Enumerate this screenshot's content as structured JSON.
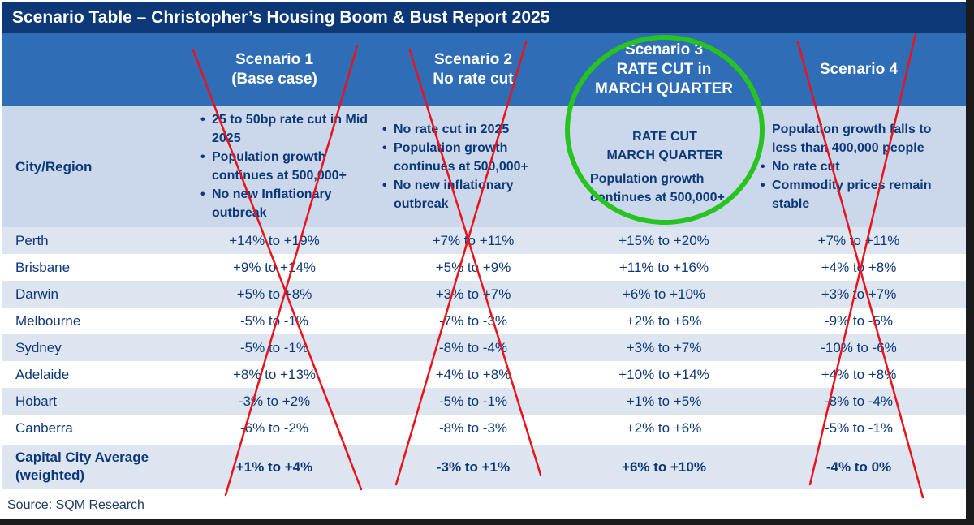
{
  "title": "Scenario Table – Christopher’s Housing  Boom & Bust Report 2025",
  "scenarios": [
    {
      "header": [
        "Scenario 1",
        "(Base case)"
      ],
      "bullets": [
        "25 to 50bp rate cut in Mid 2025",
        "Population growth continues at 500,000+",
        "No new Inflationary outbreak"
      ],
      "crossed_out": true
    },
    {
      "header": [
        "Scenario 2",
        "No rate cut"
      ],
      "bullets": [
        "No rate cut in 2025",
        "Population growth continues at 500,000+",
        "No new inflationary outbreak"
      ],
      "crossed_out": true
    },
    {
      "header": [
        "Scenario 3",
        "RATE CUT in",
        "MARCH QUARTER"
      ],
      "heading": [
        "RATE CUT",
        "MARCH QUARTER"
      ],
      "bullets": [
        "Population growth continues at 500,000+"
      ],
      "circled": true
    },
    {
      "header": [
        "Scenario 4"
      ],
      "bullets": [
        "Population growth falls to less than 400,000 people",
        "No rate cut",
        "Commodity prices remain stable"
      ],
      "crossed_out": true
    }
  ],
  "city_header": "City/Region",
  "rows": [
    {
      "city": "Perth",
      "values": [
        "+14% to +19%",
        "+7% to +11%",
        "+15% to +20%",
        "+7% to +11%"
      ]
    },
    {
      "city": "Brisbane",
      "values": [
        "+9% to +14%",
        "+5% to +9%",
        "+11% to +16%",
        "+4% to +8%"
      ]
    },
    {
      "city": "Darwin",
      "values": [
        "+5% to +8%",
        "+3% to +7%",
        "+6% to +10%",
        "+3% to +7%"
      ]
    },
    {
      "city": "Melbourne",
      "values": [
        "-5% to -1%",
        "-7% to -3%",
        "+2% to +6%",
        "-9% to -5%"
      ]
    },
    {
      "city": "Sydney",
      "values": [
        "-5% to  -1%",
        "-8% to -4%",
        "+3% to +7%",
        "-10% to -6%"
      ]
    },
    {
      "city": "Adelaide",
      "values": [
        "+8% to +13%",
        "+4% to +8%",
        "+10% to +14%",
        "+4% to +8%"
      ]
    },
    {
      "city": "Hobart",
      "values": [
        "-3% to +2%",
        "-5% to -1%",
        "+1% to +5%",
        "-8% to -4%"
      ]
    },
    {
      "city": "Canberra",
      "values": [
        "-6% to -2%",
        "-8% to -3%",
        "+2% to +6%",
        "-5% to -1%"
      ]
    }
  ],
  "average": {
    "label": [
      "Capital City Average",
      "(weighted)"
    ],
    "values": [
      "+1% to +4%",
      "-3% to +1%",
      "+6% to +10%",
      "-4% to 0%"
    ]
  },
  "source": "Source: SQM Research",
  "colors": {
    "title_bg": "#0d3878",
    "header_bg": "#2f6db6",
    "assumption_bg": "#cbd7ea",
    "row_alt": "#dde5f1",
    "text": "#0d3878",
    "cross": "#e8141b",
    "circle": "#27c41f"
  }
}
